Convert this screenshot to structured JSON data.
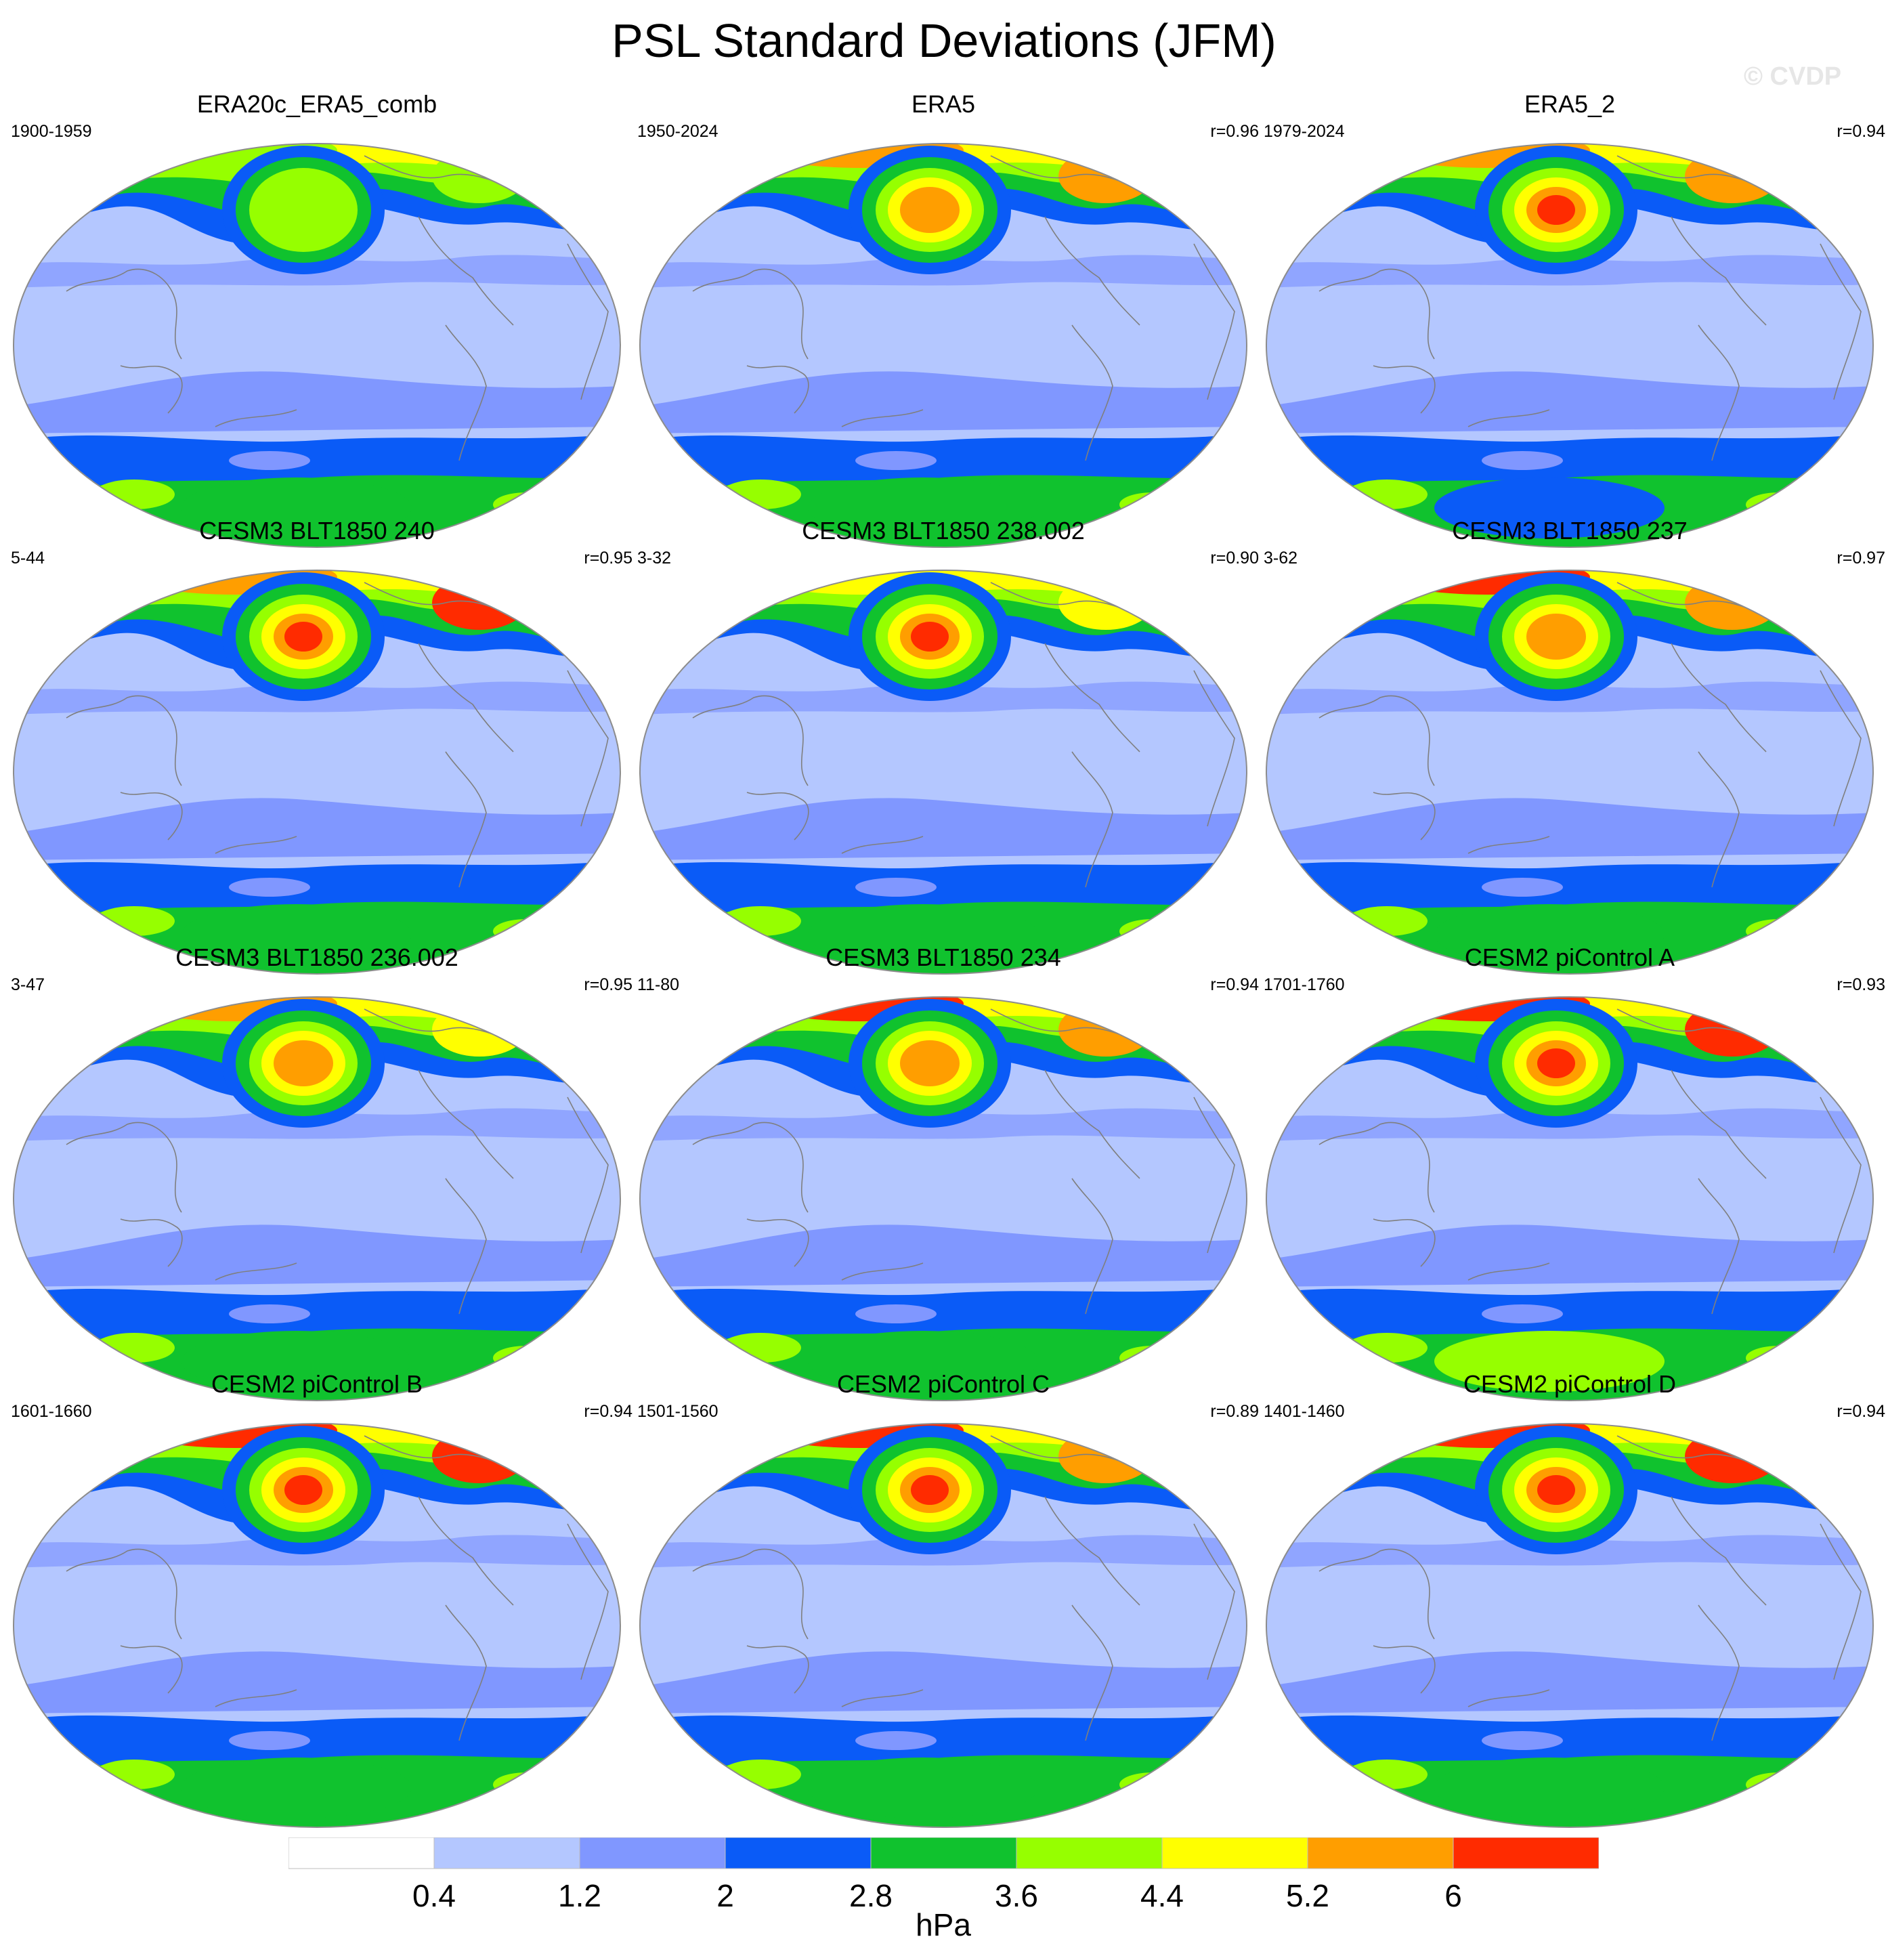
{
  "title": "PSL Standard Deviations (JFM)",
  "watermark": "© CVDP",
  "colors": {
    "levels": [
      "#ffffff",
      "#b4c7ff",
      "#8097ff",
      "#0a5bf7",
      "#10c22e",
      "#96ff00",
      "#ffff00",
      "#ff9e00",
      "#ff2b00"
    ],
    "coastline": "#7f7f7f",
    "outline": "#8c8c8c"
  },
  "panels": [
    {
      "title": "ERA20c_ERA5_comb",
      "period": "1900-1959",
      "r": "",
      "nh_high": 5,
      "nh_east": 5,
      "pacific_center": 5,
      "sh": 4
    },
    {
      "title": "ERA5",
      "period": "1950-2024",
      "r": "r=0.96",
      "nh_high": 7,
      "nh_east": 7,
      "pacific_center": 7,
      "sh": 4
    },
    {
      "title": "ERA5_2",
      "period": "1979-2024",
      "r": "r=0.94",
      "nh_high": 7,
      "nh_east": 7,
      "pacific_center": 8,
      "sh": 3
    },
    {
      "title": "CESM3 BLT1850 240",
      "period": "5-44",
      "r": "r=0.95",
      "nh_high": 7,
      "nh_east": 8,
      "pacific_center": 8,
      "sh": 4
    },
    {
      "title": "CESM3 BLT1850 238.002",
      "period": "3-32",
      "r": "r=0.90",
      "nh_high": 6,
      "nh_east": 6,
      "pacific_center": 8,
      "sh": 4
    },
    {
      "title": "CESM3 BLT1850 237",
      "period": "3-62",
      "r": "r=0.97",
      "nh_high": 8,
      "nh_east": 7,
      "pacific_center": 7,
      "sh": 4
    },
    {
      "title": "CESM3 BLT1850 236.002",
      "period": "3-47",
      "r": "r=0.95",
      "nh_high": 7,
      "nh_east": 6,
      "pacific_center": 7,
      "sh": 4
    },
    {
      "title": "CESM3 BLT1850 234",
      "period": "11-80",
      "r": "r=0.94",
      "nh_high": 8,
      "nh_east": 7,
      "pacific_center": 7,
      "sh": 4
    },
    {
      "title": "CESM2 piControl A",
      "period": "1701-1760",
      "r": "r=0.93",
      "nh_high": 8,
      "nh_east": 8,
      "pacific_center": 8,
      "sh": 5
    },
    {
      "title": "CESM2 piControl B",
      "period": "1601-1660",
      "r": "r=0.94",
      "nh_high": 8,
      "nh_east": 8,
      "pacific_center": 8,
      "sh": 4
    },
    {
      "title": "CESM2 piControl C",
      "period": "1501-1560",
      "r": "r=0.89",
      "nh_high": 8,
      "nh_east": 7,
      "pacific_center": 8,
      "sh": 4
    },
    {
      "title": "CESM2 piControl D",
      "period": "1401-1460",
      "r": "r=0.94",
      "nh_high": 8,
      "nh_east": 8,
      "pacific_center": 8,
      "sh": 4
    }
  ],
  "colorbar": {
    "labels": [
      "0.4",
      "1.2",
      "2",
      "2.8",
      "3.6",
      "4.4",
      "5.2",
      "6"
    ],
    "unit": "hPa"
  }
}
